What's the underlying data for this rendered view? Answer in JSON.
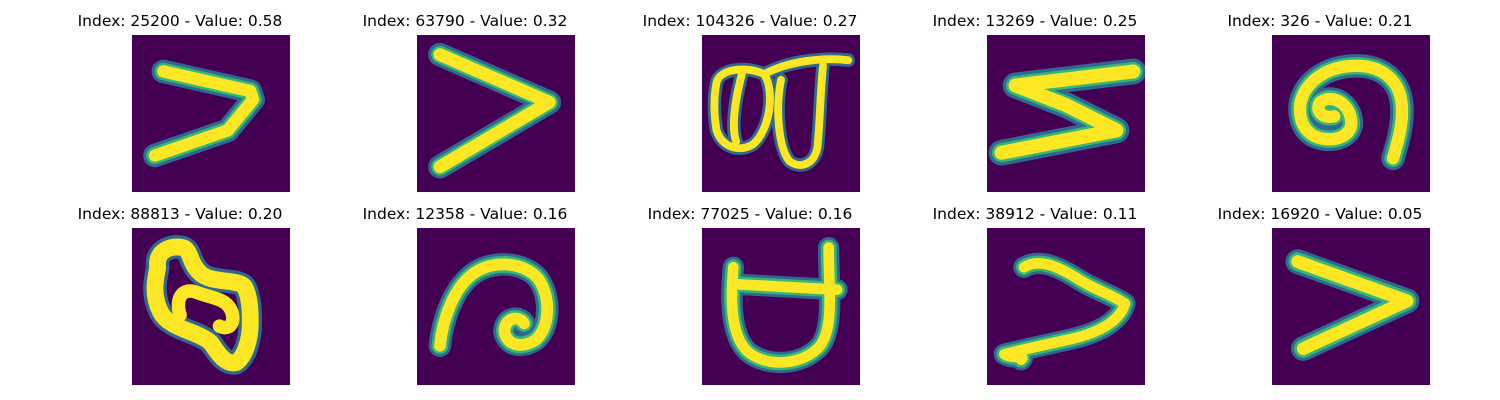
{
  "figure": {
    "panels": [
      {
        "title": "Index: 25200 - Value: 0.58",
        "index": 25200,
        "value": 0.58
      },
      {
        "title": "Index: 63790 - Value: 0.32",
        "index": 63790,
        "value": 0.32
      },
      {
        "title": "Index: 104326 - Value: 0.27",
        "index": 104326,
        "value": 0.27
      },
      {
        "title": "Index: 13269 - Value: 0.25",
        "index": 13269,
        "value": 0.25
      },
      {
        "title": "Index: 326 - Value: 0.21",
        "index": 326,
        "value": 0.21
      },
      {
        "title": "Index: 88813 - Value: 0.20",
        "index": 88813,
        "value": 0.2
      },
      {
        "title": "Index: 12358 - Value: 0.16",
        "index": 12358,
        "value": 0.16
      },
      {
        "title": "Index: 77025 - Value: 0.16",
        "index": 77025,
        "value": 0.16
      },
      {
        "title": "Index: 38912 - Value: 0.11",
        "index": 38912,
        "value": 0.11
      },
      {
        "title": "Index: 16920 - Value: 0.05",
        "index": 16920,
        "value": 0.05
      }
    ],
    "colormap": {
      "name": "viridis",
      "background": "#440154",
      "edge": "#31688e",
      "mid": "#35b779",
      "foreground": "#fde725"
    }
  }
}
